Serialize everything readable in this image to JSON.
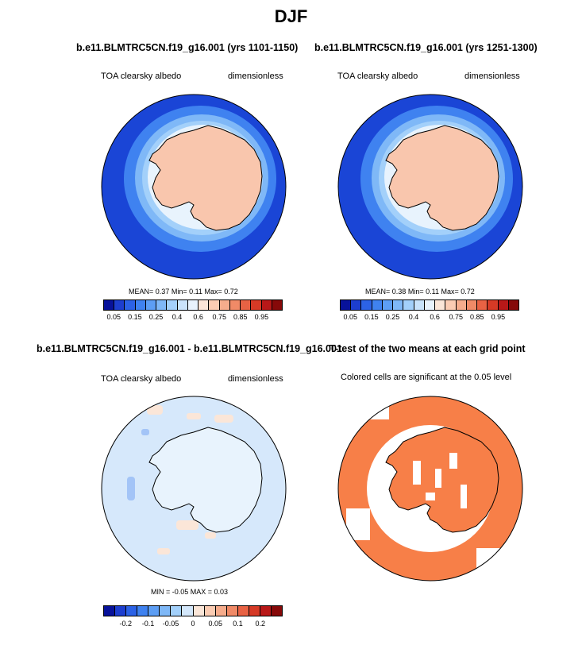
{
  "title": "DJF",
  "panels": [
    {
      "id": "p1",
      "title": "b.e11.BLMTRC5CN.f19_g16.001 (yrs 1101-1150)",
      "variable": "TOA clearsky albedo",
      "units": "dimensionless",
      "stats": {
        "mean_label": "MEAN=",
        "mean": "0.37",
        "min_label": "Min=",
        "min": "0.11",
        "max_label": "Max=",
        "max": "0.72"
      }
    },
    {
      "id": "p2",
      "title": "b.e11.BLMTRC5CN.f19_g16.001 (yrs 1251-1300)",
      "variable": "TOA clearsky albedo",
      "units": "dimensionless",
      "stats": {
        "mean_label": "MEAN=",
        "mean": "0.38",
        "min_label": "Min=",
        "min": "0.11",
        "max_label": "Max=",
        "max": "0.72"
      }
    },
    {
      "id": "p3",
      "title": "b.e11.BLMTRC5CN.f19_g16.001 - b.e11.BLMTRC5CN.f19_g16.001",
      "variable": "TOA clearsky albedo",
      "units": "dimensionless",
      "stats_text": "MIN = -0.05 MAX = 0.03"
    },
    {
      "id": "p4",
      "title": "T-test of the two means at each grid point",
      "subtitle": "Colored cells are significant at the 0.05 level"
    }
  ],
  "colorbars": {
    "absolute": {
      "colors": [
        "#08129a",
        "#1d3ecf",
        "#2c62e6",
        "#3f82f0",
        "#5d9ef4",
        "#7fb8f7",
        "#a3d0fa",
        "#c9e3fb",
        "#e8f3fd",
        "#fbe6d8",
        "#fbccb3",
        "#f6ac8c",
        "#f08a67",
        "#e86244",
        "#d63a26",
        "#b81818",
        "#860909"
      ],
      "labels": [
        "0.05",
        "0.15",
        "0.25",
        "0.4",
        "0.6",
        "0.75",
        "0.85",
        "0.95"
      ]
    },
    "difference": {
      "colors": [
        "#08129a",
        "#1d3ecf",
        "#2c62e6",
        "#3f82f0",
        "#5d9ef4",
        "#7fb8f7",
        "#a3d0fa",
        "#d3e7fb",
        "#fbe6d8",
        "#fbccb3",
        "#f6ac8c",
        "#f08a67",
        "#e86244",
        "#d63a26",
        "#b81818",
        "#860909"
      ],
      "labels": [
        "-0.2",
        "-0.1",
        "-0.05",
        "0",
        "0.05",
        "0.1",
        "0.2"
      ]
    }
  },
  "colors": {
    "ocean_far": "#1a45d6",
    "continent": "#f9c6ad",
    "diff_background": "#d6e8fb",
    "significant": "#f77f48"
  }
}
